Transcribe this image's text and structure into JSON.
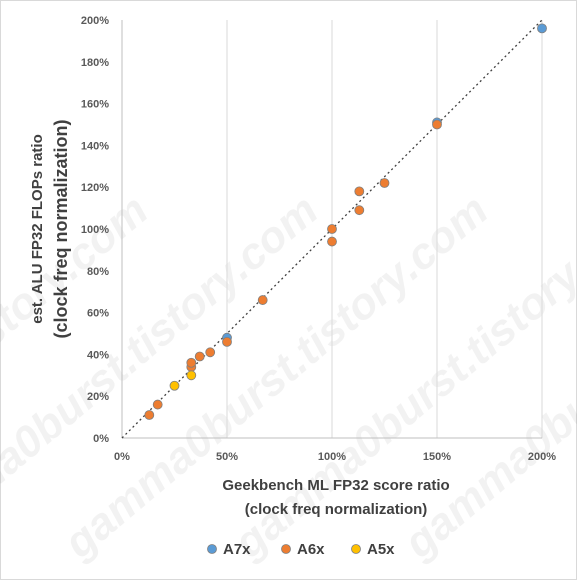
{
  "chart_data": {
    "type": "scatter",
    "xlabel": [
      "Geekbench ML FP32 score ratio",
      "(clock freq normalization)"
    ],
    "ylabel": [
      "est. ALU FP32 FLOPs ratio",
      "(clock freq normalization)"
    ],
    "xlim": [
      0,
      200
    ],
    "ylim": [
      0,
      200
    ],
    "x_ticks": [
      "0%",
      "50%",
      "100%",
      "150%",
      "200%"
    ],
    "y_ticks": [
      "0%",
      "20%",
      "40%",
      "60%",
      "80%",
      "100%",
      "120%",
      "140%",
      "160%",
      "180%",
      "200%"
    ],
    "grid": {
      "vertical": true,
      "horizontal": false
    },
    "reference_line": {
      "style": "dotted",
      "color": "#404040",
      "from": [
        0,
        0
      ],
      "to": [
        200,
        200
      ]
    },
    "legend_position": "bottom",
    "watermark": "gamma0burst.tistory.com",
    "series": [
      {
        "name": "A7x",
        "color": "#5B9BD5",
        "points": [
          [
            50,
            48
          ],
          [
            150,
            151
          ],
          [
            200,
            196
          ]
        ]
      },
      {
        "name": "A6x",
        "color": "#ED7D31",
        "points": [
          [
            13,
            11
          ],
          [
            17,
            16
          ],
          [
            33,
            34
          ],
          [
            33,
            36
          ],
          [
            37,
            39
          ],
          [
            42,
            41
          ],
          [
            50,
            46
          ],
          [
            67,
            66
          ],
          [
            100,
            94
          ],
          [
            100,
            100
          ],
          [
            113,
            109
          ],
          [
            113,
            118
          ],
          [
            125,
            122
          ],
          [
            150,
            150
          ]
        ]
      },
      {
        "name": "A5x",
        "color": "#FFC000",
        "points": [
          [
            25,
            25
          ],
          [
            33,
            30
          ]
        ]
      }
    ]
  }
}
